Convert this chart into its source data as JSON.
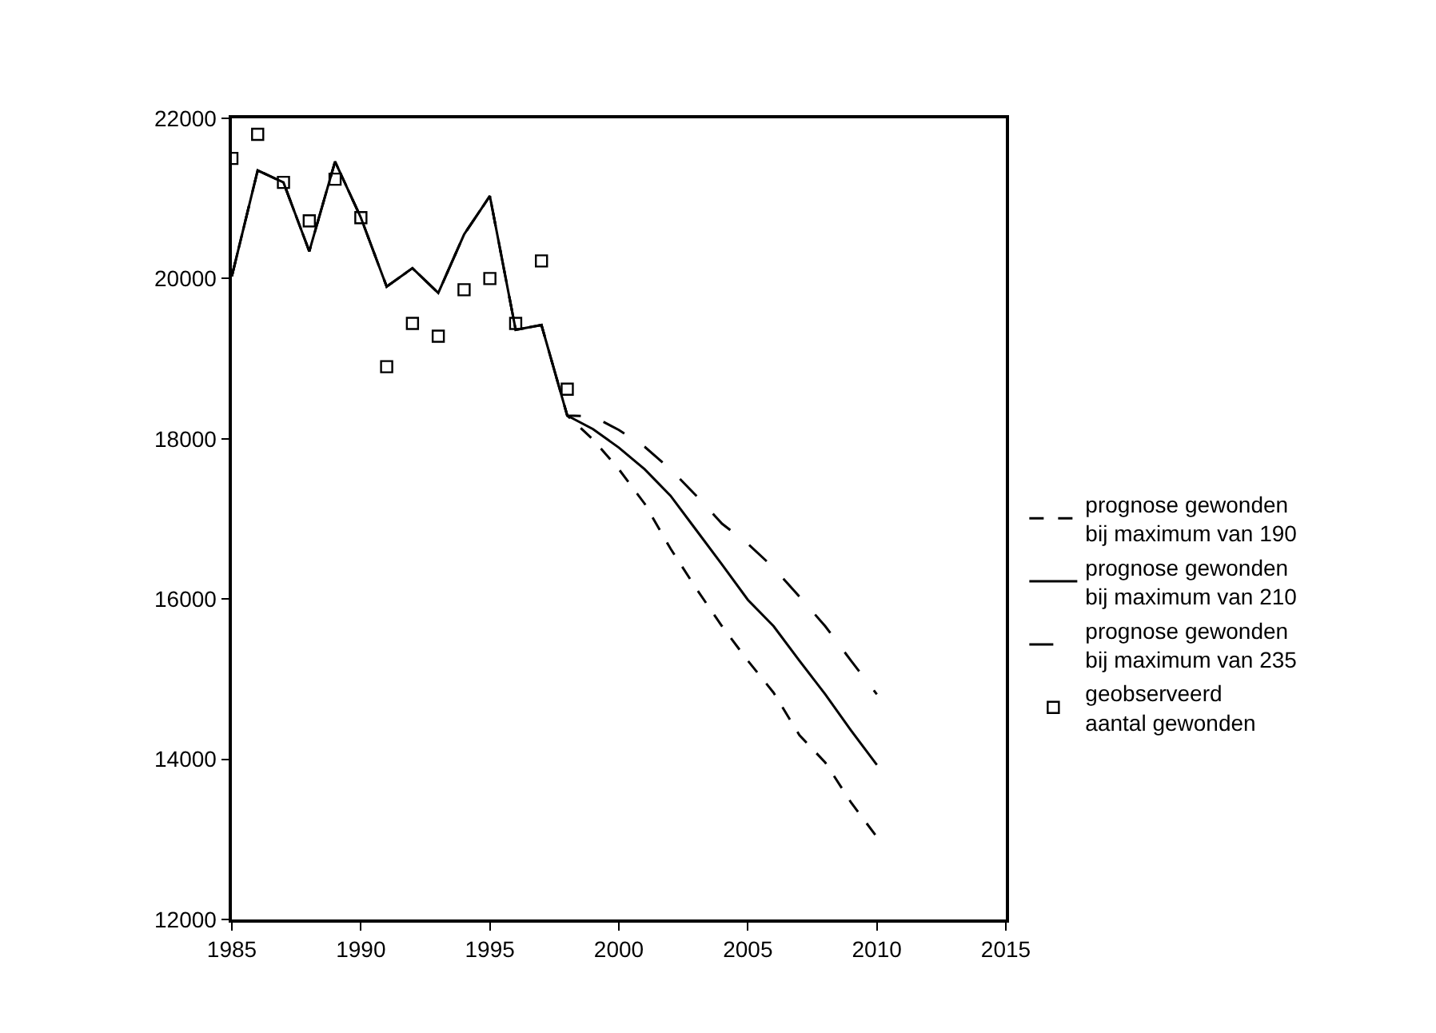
{
  "chart_data": {
    "type": "line",
    "xlim": [
      1985,
      2015
    ],
    "xticks": [
      1985,
      1990,
      1995,
      2000,
      2005,
      2010,
      2015
    ],
    "ylim": [
      12000,
      22000
    ],
    "yticks": [
      12000,
      14000,
      16000,
      18000,
      20000,
      22000
    ],
    "grid": false,
    "legend": "right",
    "marker": "none",
    "series": [
      {
        "name": "prognose gewonden\nbij maximum van 190",
        "color": "#000000",
        "line_style": "dashed",
        "x": [
          1985,
          1986,
          1987,
          1988,
          1989,
          1990,
          1991,
          1992,
          1993,
          1994,
          1995,
          1996,
          1997,
          1998,
          1999,
          2000,
          2001,
          2002,
          2003,
          2004,
          2005,
          2006,
          2007,
          2008,
          2009,
          2010
        ],
        "values": [
          20030,
          21350,
          21200,
          20340,
          21460,
          20760,
          19900,
          20130,
          19820,
          20550,
          21030,
          19360,
          19420,
          18290,
          17990,
          17620,
          17190,
          16630,
          16130,
          15660,
          15230,
          14830,
          14300,
          13960,
          13460,
          13030
        ]
      },
      {
        "name": "prognose gewonden\nbij maximum van 210",
        "color": "#000000",
        "line_style": "solid",
        "x": [
          1985,
          1986,
          1987,
          1988,
          1989,
          1990,
          1991,
          1992,
          1993,
          1994,
          1995,
          1996,
          1997,
          1998,
          1999,
          2000,
          2001,
          2002,
          2003,
          2004,
          2005,
          2006,
          2007,
          2008,
          2009,
          2010
        ],
        "values": [
          20030,
          21350,
          21200,
          20340,
          21460,
          20760,
          19900,
          20130,
          19820,
          20550,
          21030,
          19360,
          19420,
          18290,
          18120,
          17890,
          17620,
          17290,
          16860,
          16430,
          15990,
          15660,
          15230,
          14810,
          14360,
          13930
        ]
      },
      {
        "name": "prognose gewonden\nbij maximum van 235",
        "color": "#000000",
        "line_style": "longdash",
        "x": [
          1985,
          1986,
          1987,
          1988,
          1989,
          1990,
          1991,
          1992,
          1993,
          1994,
          1995,
          1996,
          1997,
          1998,
          1999,
          2000,
          2001,
          2002,
          2003,
          2004,
          2005,
          2006,
          2007,
          2008,
          2009,
          2010
        ],
        "values": [
          20030,
          21350,
          21200,
          20340,
          21460,
          20760,
          19900,
          20130,
          19820,
          20550,
          21030,
          19360,
          19420,
          18290,
          18280,
          18110,
          17900,
          17620,
          17290,
          16940,
          16690,
          16390,
          16030,
          15660,
          15230,
          14810
        ]
      },
      {
        "name": "geobserveerd\naantal gewonden",
        "type": "scatter",
        "marker": "square",
        "color": "#000000",
        "x": [
          1985,
          1986,
          1987,
          1988,
          1989,
          1990,
          1991,
          1992,
          1993,
          1994,
          1995,
          1996,
          1997,
          1998
        ],
        "values": [
          21500,
          21800,
          21200,
          20720,
          21240,
          20760,
          18900,
          19440,
          19280,
          19860,
          20000,
          19440,
          20220,
          18620
        ]
      }
    ]
  }
}
